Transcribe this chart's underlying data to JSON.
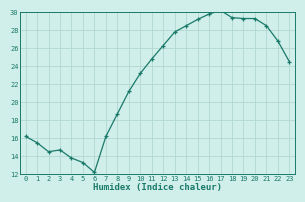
{
  "x": [
    0,
    1,
    2,
    3,
    4,
    5,
    6,
    7,
    8,
    9,
    10,
    11,
    12,
    13,
    14,
    15,
    16,
    17,
    18,
    19,
    20,
    21,
    22,
    23
  ],
  "y": [
    16.2,
    15.5,
    14.5,
    14.7,
    13.8,
    13.3,
    12.2,
    16.2,
    18.7,
    21.2,
    23.2,
    24.8,
    26.3,
    27.8,
    28.5,
    29.2,
    29.8,
    30.2,
    29.4,
    29.3,
    29.3,
    28.5,
    26.8,
    24.5
  ],
  "line_color": "#1a7a6a",
  "marker": "+",
  "bg_color": "#d0eeea",
  "grid_color": "#b0d8d0",
  "xlabel": "Humidex (Indice chaleur)",
  "ylim": [
    12,
    30
  ],
  "xlim": [
    -0.5,
    23.5
  ],
  "yticks": [
    12,
    14,
    16,
    18,
    20,
    22,
    24,
    26,
    28,
    30
  ],
  "xticks": [
    0,
    1,
    2,
    3,
    4,
    5,
    6,
    7,
    8,
    9,
    10,
    11,
    12,
    13,
    14,
    15,
    16,
    17,
    18,
    19,
    20,
    21,
    22,
    23
  ],
  "axis_color": "#1a7a6a",
  "tick_color": "#1a7a6a",
  "label_color": "#1a7a6a",
  "xlabel_fontsize": 6.5,
  "tick_fontsize": 5.0,
  "linewidth": 0.9,
  "markersize": 3.5,
  "markeredgewidth": 0.9
}
